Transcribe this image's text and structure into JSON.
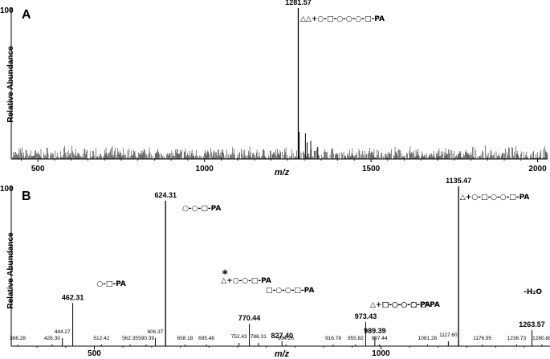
{
  "chart_data": [
    {
      "type": "bar",
      "panel_letter": "A",
      "xlabel": "m/z",
      "ylabel": "Relative Abundance",
      "xlim": [
        420,
        2030
      ],
      "ylim": [
        0,
        100
      ],
      "x_ticks": [
        500,
        1000,
        1500,
        2000
      ],
      "y_tick_top": "100",
      "peaks": [
        {
          "x": 1281.57,
          "y": 100,
          "label": "1281.57"
        },
        {
          "x": 1284.6,
          "y": 18
        },
        {
          "x": 1303.0,
          "y": 17
        },
        {
          "x": 1308.0,
          "y": 11
        },
        {
          "x": 1319.0,
          "y": 12
        },
        {
          "x": 1340.0,
          "y": 8
        }
      ],
      "noise_floor_percent": 6,
      "annotations": [
        {
          "text": "△△+○-□-○-○-○-□-PA",
          "near_x": 1281.57
        }
      ]
    },
    {
      "type": "bar",
      "panel_letter": "B",
      "xlabel": "m/z",
      "ylabel": "Relative Abundance",
      "xlim": [
        355,
        1295
      ],
      "ylim": [
        0,
        100
      ],
      "x_ticks": [
        500,
        1000
      ],
      "y_tick_top": "100",
      "peaks": [
        {
          "x": 366.28,
          "y": 1,
          "label": "366.28"
        },
        {
          "x": 426.3,
          "y": 1,
          "label": "426.30"
        },
        {
          "x": 444.27,
          "y": 5,
          "label": "444.27"
        },
        {
          "x": 462.31,
          "y": 27,
          "label": "462.31"
        },
        {
          "x": 512.42,
          "y": 1,
          "label": "512.42"
        },
        {
          "x": 562.35,
          "y": 1,
          "label": "562.35"
        },
        {
          "x": 590.39,
          "y": 1,
          "label": "590.39"
        },
        {
          "x": 606.37,
          "y": 5,
          "label": "606.37"
        },
        {
          "x": 624.31,
          "y": 91,
          "label": "624.31"
        },
        {
          "x": 658.18,
          "y": 1,
          "label": "658.18"
        },
        {
          "x": 695.48,
          "y": 1,
          "label": "695.48"
        },
        {
          "x": 752.43,
          "y": 2,
          "label": "752.43"
        },
        {
          "x": 770.44,
          "y": 14,
          "label": "770.44"
        },
        {
          "x": 786.31,
          "y": 2,
          "label": "786.31"
        },
        {
          "x": 827.4,
          "y": 3,
          "label": "827.40"
        },
        {
          "x": 834.26,
          "y": 1,
          "label": "834.26"
        },
        {
          "x": 916.78,
          "y": 1,
          "label": "916.78"
        },
        {
          "x": 955.82,
          "y": 1,
          "label": "955.82"
        },
        {
          "x": 973.43,
          "y": 15,
          "label": "973.43"
        },
        {
          "x": 989.39,
          "y": 6,
          "label": "989.39"
        },
        {
          "x": 997.44,
          "y": 1,
          "label": "997.44"
        },
        {
          "x": 1081.28,
          "y": 1,
          "label": "1081.28"
        },
        {
          "x": 1117.6,
          "y": 3,
          "label": "1117.60"
        },
        {
          "x": 1135.47,
          "y": 100,
          "label": "1135.47"
        },
        {
          "x": 1176.95,
          "y": 1,
          "label": "1176.95"
        },
        {
          "x": 1236.73,
          "y": 1,
          "label": "1236.73"
        },
        {
          "x": 1263.57,
          "y": 10,
          "label": "1263.57"
        },
        {
          "x": 1280.88,
          "y": 1,
          "label": "1280.88"
        }
      ],
      "annotations": [
        {
          "text": "○-□-PA",
          "near_x": 462.31
        },
        {
          "text": "○-○-□-PA",
          "near_x": 624.31
        },
        {
          "text": "*",
          "near_x": 770.44
        },
        {
          "text": "△+○-○-□-PA",
          "near_x": 770.44
        },
        {
          "text": "□-○-○-□-PA",
          "near_x": 827.4
        },
        {
          "text": "△+□-○-○-□-PA",
          "near_x": 973.43
        },
        {
          "text": "□-○-○-○-□-PA",
          "near_x": 989.39
        },
        {
          "text": "△+○-□-○-○-□-PA",
          "near_x": 1135.47
        },
        {
          "text": "-H₂O",
          "near_x": 1263.57
        }
      ]
    }
  ]
}
